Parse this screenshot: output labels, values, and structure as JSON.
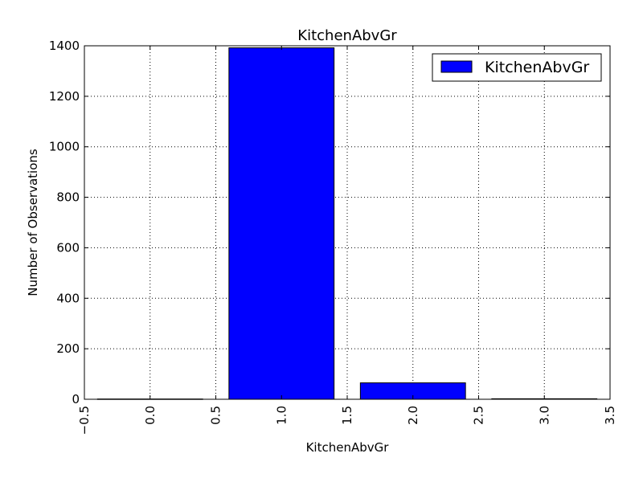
{
  "chart_data": {
    "type": "bar",
    "title": "KitchenAbvGr",
    "xlabel": "KitchenAbvGr",
    "ylabel": "Number of Observations",
    "x": [
      0,
      1,
      2,
      3
    ],
    "values": [
      1,
      1392,
      65,
      2
    ],
    "bar_width": 0.8,
    "xlim": [
      -0.5,
      3.5
    ],
    "ylim": [
      0,
      1400
    ],
    "xticks": [
      "−0.5",
      "0.0",
      "0.5",
      "1.0",
      "1.5",
      "2.0",
      "2.5",
      "3.0",
      "3.5"
    ],
    "yticks": [
      "0",
      "200",
      "400",
      "600",
      "800",
      "1000",
      "1200",
      "1400"
    ],
    "grid": true,
    "legend": {
      "position": "top-right",
      "entries": [
        "KitchenAbvGr"
      ]
    },
    "colors": {
      "bar": "#0000ff",
      "edge": "#000000"
    },
    "series": [
      {
        "name": "KitchenAbvGr",
        "values": [
          1,
          1392,
          65,
          2
        ]
      }
    ]
  }
}
